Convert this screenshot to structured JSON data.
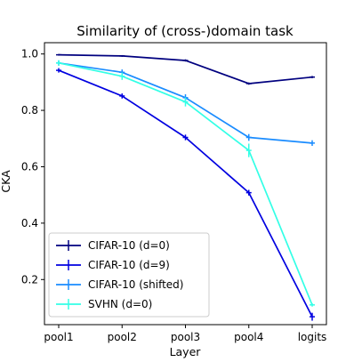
{
  "chart_data": {
    "type": "line",
    "title": "Similarity of (cross-)domain task",
    "xlabel": "Layer",
    "ylabel": "CKA",
    "categories": [
      "pool1",
      "pool2",
      "pool3",
      "pool4",
      "logits"
    ],
    "ylim": [
      0.04,
      1.04
    ],
    "yticks": [
      0.2,
      0.4,
      0.6,
      0.8,
      1.0
    ],
    "ytick_labels": [
      "0.2",
      "0.4",
      "0.6",
      "0.8",
      "1.0"
    ],
    "grid": false,
    "legend_position": "lower-left",
    "series": [
      {
        "name": "CIFAR-10 (d=0)",
        "color": "#00007f",
        "values": [
          0.997,
          0.993,
          0.977,
          0.895,
          0.918
        ],
        "errors": [
          0.003,
          0.003,
          0.004,
          0.004,
          0.004
        ]
      },
      {
        "name": "CIFAR-10 (d=9)",
        "color": "#0000e0",
        "values": [
          0.942,
          0.851,
          0.704,
          0.508,
          0.068
        ],
        "errors": [
          0.008,
          0.009,
          0.01,
          0.01,
          0.014
        ]
      },
      {
        "name": "CIFAR-10 (shifted)",
        "color": "#1a8cff",
        "values": [
          0.968,
          0.935,
          0.845,
          0.704,
          0.684
        ],
        "errors": [
          0.009,
          0.01,
          0.012,
          0.012,
          0.01
        ]
      },
      {
        "name": "SVHN (d=0)",
        "color": "#33ffe6",
        "values": [
          0.968,
          0.921,
          0.83,
          0.658,
          0.11
        ],
        "errors": [
          0.01,
          0.013,
          0.016,
          0.024,
          0.006
        ]
      }
    ]
  }
}
